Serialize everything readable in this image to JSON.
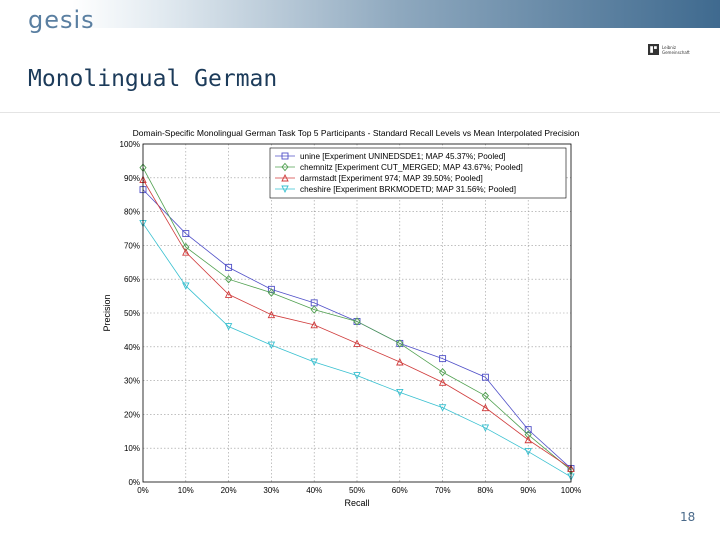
{
  "header": {
    "brand": "gesis"
  },
  "logo": {
    "line1": "Leibniz",
    "line2": "Gemeinschaft"
  },
  "slide": {
    "title": "Monolingual German",
    "page_number": "18"
  },
  "colors": {
    "unine": "#5050c8",
    "chemnitz": "#50a050",
    "darmstadt": "#d03c3c",
    "cheshire": "#38c0d0"
  },
  "chart_data": {
    "type": "line",
    "title": "Domain-Specific Monolingual German Task Top 5 Participants - Standard Recall Levels vs Mean Interpolated Precision",
    "xlabel": "Recall",
    "ylabel": "Precision",
    "x": [
      0,
      10,
      20,
      30,
      40,
      50,
      60,
      70,
      80,
      90,
      100
    ],
    "x_tick_labels": [
      "0%",
      "10%",
      "20%",
      "30%",
      "40%",
      "50%",
      "60%",
      "70%",
      "80%",
      "90%",
      "100%"
    ],
    "y_tick_labels": [
      "0%",
      "10%",
      "20%",
      "30%",
      "40%",
      "50%",
      "60%",
      "70%",
      "80%",
      "90%",
      "100%"
    ],
    "xlim": [
      0,
      100
    ],
    "ylim": [
      0,
      100
    ],
    "grid": true,
    "legend_position": "top-right",
    "series": [
      {
        "name": "unine [Experiment UNINEDSDE1; MAP 45.37%; Pooled]",
        "marker": "square",
        "color": "#5050c8",
        "values": [
          86.5,
          73.5,
          63.5,
          57,
          53,
          47.5,
          41,
          36.5,
          31,
          15.5,
          4
        ]
      },
      {
        "name": "chemnitz [Experiment CUT_MERGED; MAP 43.67%; Pooled]",
        "marker": "diamond",
        "color": "#50a050",
        "values": [
          93,
          69.5,
          60,
          56,
          51,
          47.5,
          41,
          32.5,
          25.5,
          14,
          3.5
        ]
      },
      {
        "name": "darmstadt [Experiment 974; MAP 39.50%; Pooled]",
        "marker": "triangle-up",
        "color": "#d03c3c",
        "values": [
          89.5,
          68,
          55.5,
          49.5,
          46.5,
          41,
          35.5,
          29.5,
          22,
          12.5,
          4
        ]
      },
      {
        "name": "cheshire [Experiment BRKMODETD; MAP 31.56%; Pooled]",
        "marker": "triangle-down",
        "color": "#38c0d0",
        "values": [
          76.5,
          58,
          46,
          40.5,
          35.5,
          31.5,
          26.5,
          22,
          16,
          9,
          1.5
        ]
      }
    ]
  }
}
